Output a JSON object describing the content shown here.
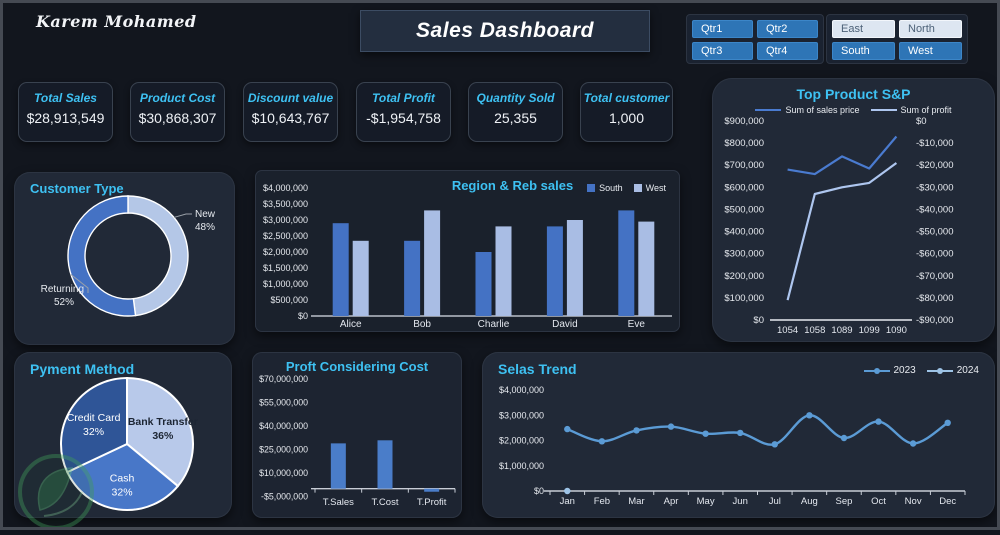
{
  "header": {
    "signature": "Karem Mohamed",
    "title": "Sales Dashboard"
  },
  "slicers": {
    "quarters": {
      "items": [
        {
          "label": "Qtr1",
          "state": "active"
        },
        {
          "label": "Qtr2",
          "state": "active"
        },
        {
          "label": "Qtr3",
          "state": "active"
        },
        {
          "label": "Qtr4",
          "state": "active"
        }
      ]
    },
    "regions": {
      "items": [
        {
          "label": "East",
          "state": "inactive"
        },
        {
          "label": "North",
          "state": "inactive"
        },
        {
          "label": "South",
          "state": "active"
        },
        {
          "label": "West",
          "state": "active"
        }
      ]
    }
  },
  "kpis": [
    {
      "label": "Total Sales",
      "value": "$28,913,549"
    },
    {
      "label": "Product Cost",
      "value": "$30,868,307"
    },
    {
      "label": "Discount value",
      "value": "$10,643,767"
    },
    {
      "label": "Total Profit",
      "value": "-$1,954,758"
    },
    {
      "label": "Quantity Sold",
      "value": "25,355"
    },
    {
      "label": "Total customer",
      "value": "1,000"
    }
  ],
  "colors": {
    "accent_cyan": "#3ec1f2",
    "blue_dark": "#2f5597",
    "blue_medium": "#4472c4",
    "blue_light": "#b4c7e7",
    "slicer_blue": "#2e75b6",
    "slicer_light": "#dde6f1"
  },
  "chart_data": [
    {
      "id": "customer_type",
      "type": "pie",
      "subtype": "donut",
      "title": "Customer Type",
      "labels": [
        "New",
        "Returning"
      ],
      "values": [
        48,
        52
      ],
      "value_labels": [
        "48%",
        "52%"
      ],
      "colors": [
        "#b4c7e7",
        "#4472c4"
      ]
    },
    {
      "id": "region_reb_sales",
      "type": "bar",
      "title": "Region & Reb sales",
      "categories": [
        "Alice",
        "Bob",
        "Charlie",
        "David",
        "Eve"
      ],
      "series": [
        {
          "name": "South",
          "color": "#4472c4",
          "values": [
            2900000,
            2350000,
            2000000,
            2800000,
            3300000
          ]
        },
        {
          "name": "West",
          "color": "#a9bde4",
          "values": [
            2350000,
            3300000,
            2800000,
            3000000,
            2950000
          ]
        }
      ],
      "ylim": [
        0,
        4000000
      ],
      "ytick_step": 500000,
      "grid": false,
      "legend_position": "top-right"
    },
    {
      "id": "top_product_sp",
      "type": "line",
      "title": "Top Product  S&P",
      "categories": [
        "1054",
        "1058",
        "1089",
        "1099",
        "1090"
      ],
      "series": [
        {
          "name": "Sum of sales price",
          "axis": "left",
          "color": "#4a7bd0",
          "values": [
            680000,
            660000,
            740000,
            685000,
            830000
          ]
        },
        {
          "name": "Sum of profit",
          "axis": "right",
          "color": "#aec6ef",
          "values": [
            -81000,
            -33000,
            -30000,
            -28000,
            -19000
          ]
        }
      ],
      "left_ylim": [
        0,
        900000
      ],
      "left_ytick_step": 100000,
      "right_ylim": [
        -90000,
        0
      ],
      "right_ytick_step": 10000,
      "grid": false,
      "legend_position": "top"
    },
    {
      "id": "payment_method",
      "type": "pie",
      "title": "Pyment Method",
      "labels": [
        "Bank Transfer",
        "Cash",
        "Credit Card"
      ],
      "values": [
        36,
        32,
        32
      ],
      "value_labels": [
        "36%",
        "32%",
        "32%"
      ],
      "colors": [
        "#b8c9ea",
        "#4877c8",
        "#2f5597"
      ],
      "label_text_colors": [
        "#1c2533",
        "#ffffff",
        "#ffffff"
      ]
    },
    {
      "id": "profit_considering_cost",
      "type": "bar",
      "title": "Proft Considering Cost",
      "categories": [
        "T.Sales",
        "T.Cost",
        "T.Profit"
      ],
      "series": [
        {
          "name": "Total",
          "color": "#4a7dc9",
          "values": [
            28913549,
            30868307,
            -1954758
          ]
        }
      ],
      "ylim": [
        -5000000,
        70000000
      ],
      "yticks": [
        70000000,
        55000000,
        40000000,
        25000000,
        10000000,
        -5000000
      ],
      "grid": false
    },
    {
      "id": "selas_trend",
      "type": "line",
      "title": "Selas Trend",
      "categories": [
        "Jan",
        "Feb",
        "Mar",
        "Apr",
        "May",
        "Jun",
        "Jul",
        "Aug",
        "Sep",
        "Oct",
        "Nov",
        "Dec"
      ],
      "series": [
        {
          "name": "2023",
          "color": "#5b9bd5",
          "smooth": true,
          "markers": true,
          "values": [
            2450000,
            1970000,
            2400000,
            2550000,
            2270000,
            2300000,
            1850000,
            3000000,
            2100000,
            2750000,
            1880000,
            2700000
          ]
        },
        {
          "name": "2024",
          "color": "#9dc3e6",
          "markers": true,
          "values": [
            0,
            null,
            null,
            null,
            null,
            null,
            null,
            null,
            null,
            null,
            null,
            null
          ]
        }
      ],
      "ylim": [
        0,
        4000000
      ],
      "ytick_step": 1000000,
      "grid": false,
      "legend_position": "top-right"
    }
  ]
}
